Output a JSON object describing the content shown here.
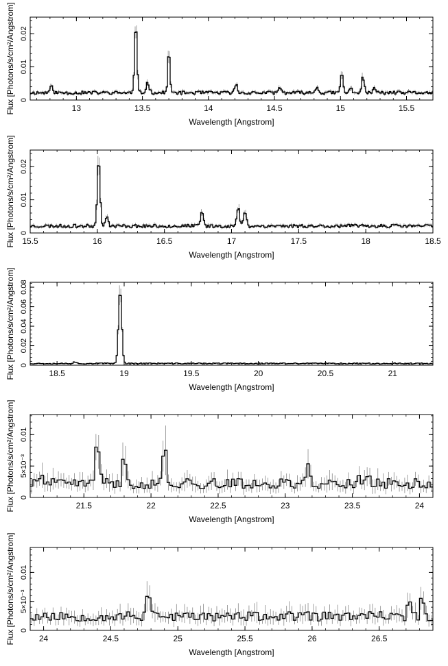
{
  "chart_data": [
    {
      "type": "line",
      "xlabel": "Wavelength [Angstrom]",
      "ylabel": "Flux [Photons/s/cm²/Angstrom]",
      "xlim": [
        12.65,
        15.7
      ],
      "ylim": [
        0,
        0.025
      ],
      "xticks": [
        13,
        13.5,
        14,
        14.5,
        15,
        15.5
      ],
      "yticks": [
        0,
        0.01,
        0.02
      ],
      "ytick_labels": [
        "0",
        "0.01",
        "0.02"
      ],
      "baseline": 0.0022,
      "noise": 0.0005,
      "errfrac": 0.12,
      "bin": 0.01,
      "seed": 11,
      "lines": [
        [
          12.81,
          0.0018,
          0.012
        ],
        [
          13.45,
          0.021,
          0.009
        ],
        [
          13.54,
          0.003,
          0.012
        ],
        [
          13.7,
          0.013,
          0.008
        ],
        [
          14.21,
          0.0025,
          0.01
        ],
        [
          14.54,
          0.0016,
          0.01
        ],
        [
          14.82,
          0.0018,
          0.01
        ],
        [
          15.01,
          0.0062,
          0.009
        ],
        [
          15.08,
          0.0014,
          0.01
        ],
        [
          15.17,
          0.0048,
          0.01
        ],
        [
          15.26,
          0.0014,
          0.01
        ]
      ]
    },
    {
      "type": "line",
      "xlabel": "Wavelength [Angstrom]",
      "ylabel": "Flux [Photons/s/cm²/Angstrom]",
      "xlim": [
        15.5,
        18.5
      ],
      "ylim": [
        0,
        0.025
      ],
      "xticks": [
        15.5,
        16,
        16.5,
        17,
        17.5,
        18,
        18.5
      ],
      "yticks": [
        0,
        0.01,
        0.02
      ],
      "ytick_labels": [
        "0",
        "0.01",
        "0.02"
      ],
      "baseline": 0.0021,
      "noise": 0.0005,
      "errfrac": 0.12,
      "bin": 0.01,
      "seed": 23,
      "lines": [
        [
          16.01,
          0.021,
          0.01
        ],
        [
          16.07,
          0.0025,
          0.012
        ],
        [
          16.78,
          0.0045,
          0.01
        ],
        [
          17.05,
          0.0055,
          0.01
        ],
        [
          17.1,
          0.0045,
          0.01
        ]
      ]
    },
    {
      "type": "line",
      "xlabel": "Wavelength [Angstrom]",
      "ylabel": "Flux [Photons/s/cm²/Angstrom]",
      "xlim": [
        18.3,
        21.3
      ],
      "ylim": [
        0,
        0.085
      ],
      "xticks": [
        18.5,
        19,
        19.5,
        20,
        20.5,
        21
      ],
      "yticks": [
        0,
        0.02,
        0.04,
        0.06,
        0.08
      ],
      "ytick_labels": [
        "0",
        "0.02",
        "0.04",
        "0.06",
        "0.08"
      ],
      "baseline": 0.0018,
      "noise": 0.0006,
      "errfrac": 0.1,
      "bin": 0.01,
      "seed": 37,
      "lines": [
        [
          18.97,
          0.076,
          0.012
        ],
        [
          18.63,
          0.0018,
          0.01
        ]
      ]
    },
    {
      "type": "line",
      "xlabel": "Wavelength [Angstrom]",
      "ylabel": "Flux [Photons/s/cm²/Angstrom]",
      "xlim": [
        21.1,
        24.1
      ],
      "ylim": [
        0,
        0.0132
      ],
      "xticks": [
        21.5,
        22,
        22.5,
        23,
        23.5,
        24
      ],
      "yticks": [
        0,
        0.005,
        0.01
      ],
      "ytick_labels": [
        "0",
        "5×10⁻³",
        "0.01"
      ],
      "baseline": 0.0022,
      "noise": 0.0008,
      "errfrac": 0.35,
      "bin": 0.02,
      "seed": 41,
      "lines": [
        [
          21.6,
          0.0075,
          0.014
        ],
        [
          21.8,
          0.0045,
          0.012
        ],
        [
          22.1,
          0.0066,
          0.012
        ],
        [
          23.17,
          0.0035,
          0.012
        ],
        [
          21.18,
          0.0022,
          0.012
        ],
        [
          23.62,
          0.002,
          0.012
        ],
        [
          23.55,
          0.0016,
          0.012
        ]
      ]
    },
    {
      "type": "line",
      "xlabel": "Wavelength [Angstrom]",
      "ylabel": "Flux [Photons/s/cm²/Angstrom]",
      "xlim": [
        23.9,
        26.9
      ],
      "ylim": [
        0,
        0.0143
      ],
      "xticks": [
        24,
        24.5,
        25,
        25.5,
        26,
        26.5
      ],
      "yticks": [
        0,
        0.005,
        0.01
      ],
      "ytick_labels": [
        "0",
        "5×10⁻³",
        "0.01"
      ],
      "baseline": 0.0024,
      "noise": 0.0008,
      "errfrac": 0.35,
      "bin": 0.02,
      "seed": 53,
      "lines": [
        [
          24.78,
          0.0045,
          0.014
        ],
        [
          24.84,
          0.0015,
          0.012
        ],
        [
          26.82,
          0.004,
          0.01
        ],
        [
          26.72,
          0.003,
          0.01
        ]
      ]
    }
  ]
}
